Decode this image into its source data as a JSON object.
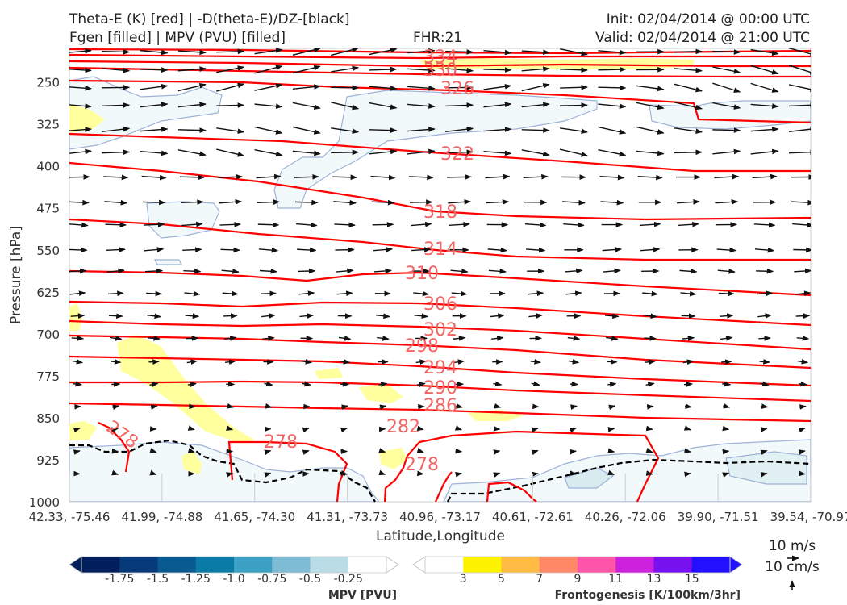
{
  "header": {
    "title_line1": "Theta-E (K) [red] | -D(theta-E)/DZ-[black]",
    "title_line2": "Fgen [filled] | MPV (PVU) [filled]",
    "fhr": "FHR:21",
    "init": "Init: 02/04/2014 @ 00:00 UTC",
    "valid": "Valid: 02/04/2014 @ 21:00 UTC"
  },
  "chart_data": {
    "type": "cross-section",
    "ylabel": "Pressure [hPa]",
    "xlabel": "Latitude,Longitude",
    "y_ticks": [
      "250",
      "325",
      "400",
      "475",
      "550",
      "625",
      "700",
      "775",
      "850",
      "925",
      "1000"
    ],
    "y_tick_values": [
      250,
      325,
      400,
      475,
      550,
      625,
      700,
      775,
      850,
      925,
      1000
    ],
    "ylim": [
      1000,
      190
    ],
    "x_ticks": [
      "42.33, -75.46",
      "41.99, -74.88",
      "41.65, -74.30",
      "41.31, -73.73",
      "40.96, -73.17",
      "40.61, -72.61",
      "40.26, -72.06",
      "39.90, -71.51",
      "39.54, -70.97"
    ],
    "theta_e_labels": [
      "334",
      "330",
      "326",
      "322",
      "318",
      "314",
      "310",
      "306",
      "302",
      "298",
      "294",
      "290",
      "286",
      "282",
      "278",
      "278",
      "278"
    ],
    "theta_e_color": "#ff0000",
    "label_color": "#f46464",
    "wind_scale": {
      "vertical": "10 m/s",
      "horizontal": "10 cm/s"
    }
  },
  "colorbars": {
    "mpv": {
      "label": "MPV [PVU]",
      "ticks": [
        "-1.75",
        "-1.5",
        "-1.25",
        "-1.0",
        "-0.75",
        "-0.5",
        "-0.25"
      ],
      "colors": [
        "#001f5c",
        "#063a78",
        "#0a5a92",
        "#0a7aa6",
        "#3ba0c4",
        "#7dbcd4",
        "#b9dce6",
        "#ffffff"
      ]
    },
    "fgen": {
      "label": "Frontogenesis [K/100km/3hr]",
      "ticks": [
        "3",
        "5",
        "7",
        "9",
        "11",
        "13",
        "15"
      ],
      "colors": [
        "#ffffff",
        "#fff200",
        "#ffbb44",
        "#ff8866",
        "#ff55a8",
        "#cc22dd",
        "#7711ee",
        "#2211ff"
      ]
    }
  }
}
